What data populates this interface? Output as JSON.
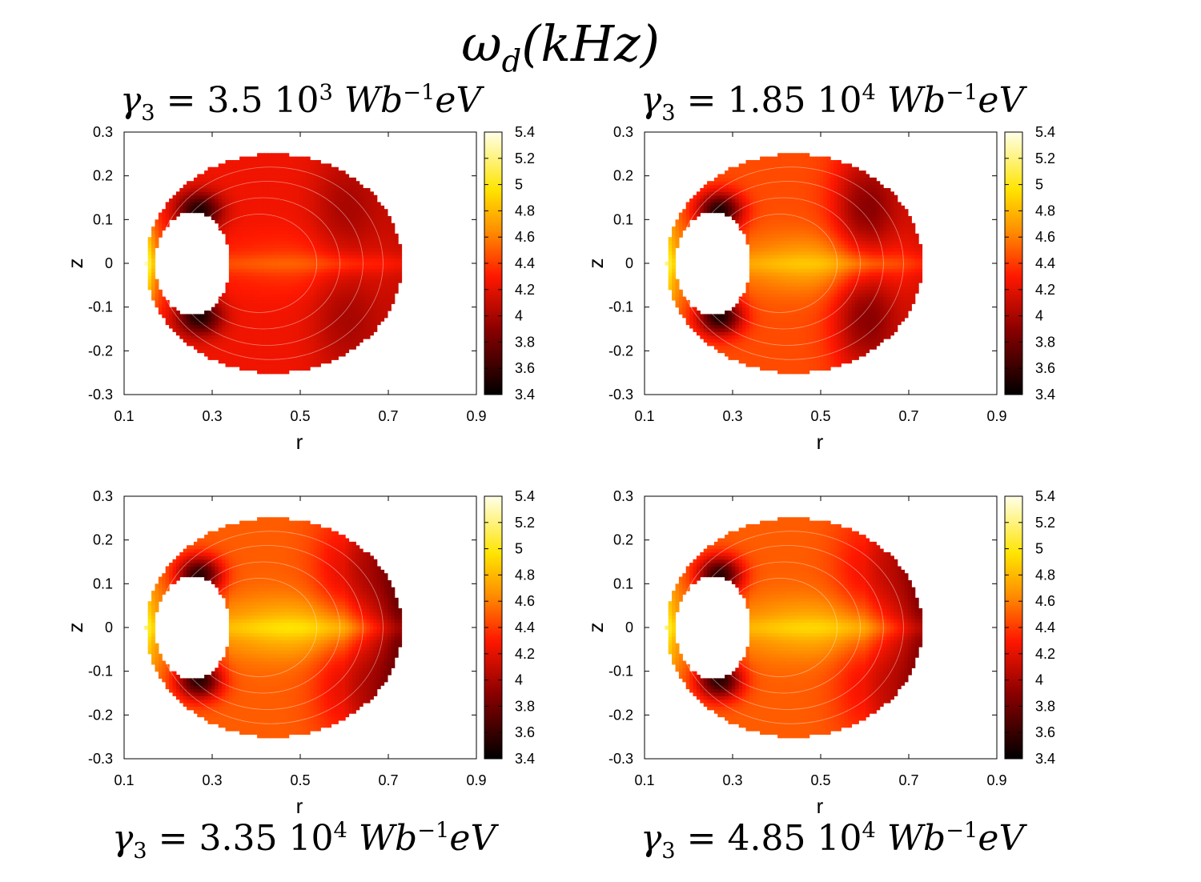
{
  "title": {
    "main": "ω",
    "sub": "d",
    "unit": "(kHz)"
  },
  "chart_data": [
    {
      "type": "heatmap",
      "id": "p0",
      "title": {
        "prefix": "γ",
        "sub": "3",
        "eq": " = 3.5 10",
        "exp": "3",
        "unit": "Wb",
        "unit_exp": "−1",
        "unit_tail": "eV"
      },
      "xlabel": "r",
      "ylabel": "z",
      "xlim": [
        0.1,
        0.9
      ],
      "ylim": [
        -0.3,
        0.3
      ],
      "xticks": [
        "0.1",
        "0.3",
        "0.5",
        "0.7",
        "0.9"
      ],
      "yticks": [
        "0.3",
        "0.2",
        "0.1",
        "0",
        "-0.1",
        "-0.2",
        "-0.3"
      ],
      "colorbar": {
        "min": 3.4,
        "max": 5.4,
        "ticks": [
          "5.4",
          "5.2",
          "5",
          "4.8",
          "4.6",
          "4.4",
          "4.2",
          "4",
          "3.8",
          "3.6",
          "3.4"
        ]
      },
      "field": {
        "inner_edge": 5.2,
        "dark_spot": 3.5,
        "midplane": 4.4,
        "r_mid": 4.25,
        "r_ridge": 4.0,
        "r_outer": 4.1
      }
    },
    {
      "type": "heatmap",
      "id": "p1",
      "title": {
        "prefix": "γ",
        "sub": "3",
        "eq": " = 1.85 10",
        "exp": "4",
        "unit": "Wb",
        "unit_exp": "−1",
        "unit_tail": "eV"
      },
      "xlabel": "r",
      "ylabel": "z",
      "xlim": [
        0.1,
        0.9
      ],
      "ylim": [
        -0.3,
        0.3
      ],
      "xticks": [
        "0.1",
        "0.3",
        "0.5",
        "0.7",
        "0.9"
      ],
      "yticks": [
        "0.3",
        "0.2",
        "0.1",
        "0",
        "-0.1",
        "-0.2",
        "-0.3"
      ],
      "colorbar": {
        "min": 3.4,
        "max": 5.4,
        "ticks": [
          "5.4",
          "5.2",
          "5",
          "4.8",
          "4.6",
          "4.4",
          "4.2",
          "4",
          "3.8",
          "3.6",
          "3.4"
        ]
      },
      "field": {
        "inner_edge": 5.1,
        "dark_spot": 3.5,
        "midplane": 4.75,
        "r_mid": 4.45,
        "r_ridge": 3.9,
        "r_outer": 4.15
      }
    },
    {
      "type": "heatmap",
      "id": "p2",
      "title": {
        "prefix": "γ",
        "sub": "3",
        "eq": " = 3.35 10",
        "exp": "4",
        "unit": "Wb",
        "unit_exp": "−1",
        "unit_tail": "eV"
      },
      "xlabel": "r",
      "ylabel": "z",
      "xlim": [
        0.1,
        0.9
      ],
      "ylim": [
        -0.3,
        0.3
      ],
      "xticks": [
        "0.1",
        "0.3",
        "0.5",
        "0.7",
        "0.9"
      ],
      "yticks": [
        "0.3",
        "0.2",
        "0.1",
        "0",
        "-0.1",
        "-0.2",
        "-0.3"
      ],
      "colorbar": {
        "min": 3.4,
        "max": 5.4,
        "ticks": [
          "5.4",
          "5.2",
          "5",
          "4.8",
          "4.6",
          "4.4",
          "4.2",
          "4",
          "3.8",
          "3.6",
          "3.4"
        ]
      },
      "field": {
        "inner_edge": 5.05,
        "dark_spot": 3.55,
        "midplane": 4.85,
        "r_mid": 4.5,
        "r_ridge": 4.2,
        "r_outer": 3.75
      }
    },
    {
      "type": "heatmap",
      "id": "p3",
      "title": {
        "prefix": "γ",
        "sub": "3",
        "eq": " = 4.85 10",
        "exp": "4",
        "unit": "Wb",
        "unit_exp": "−1",
        "unit_tail": "eV"
      },
      "xlabel": "r",
      "ylabel": "z",
      "xlim": [
        0.1,
        0.9
      ],
      "ylim": [
        -0.3,
        0.3
      ],
      "xticks": [
        "0.1",
        "0.3",
        "0.5",
        "0.7",
        "0.9"
      ],
      "yticks": [
        "0.3",
        "0.2",
        "0.1",
        "0",
        "-0.1",
        "-0.2",
        "-0.3"
      ],
      "colorbar": {
        "min": 3.4,
        "max": 5.4,
        "ticks": [
          "5.4",
          "5.2",
          "5",
          "4.8",
          "4.6",
          "4.4",
          "4.2",
          "4",
          "3.8",
          "3.6",
          "3.4"
        ]
      },
      "field": {
        "inner_edge": 5.05,
        "dark_spot": 3.55,
        "midplane": 4.8,
        "r_mid": 4.5,
        "r_ridge": 4.25,
        "r_outer": 3.85
      }
    }
  ]
}
